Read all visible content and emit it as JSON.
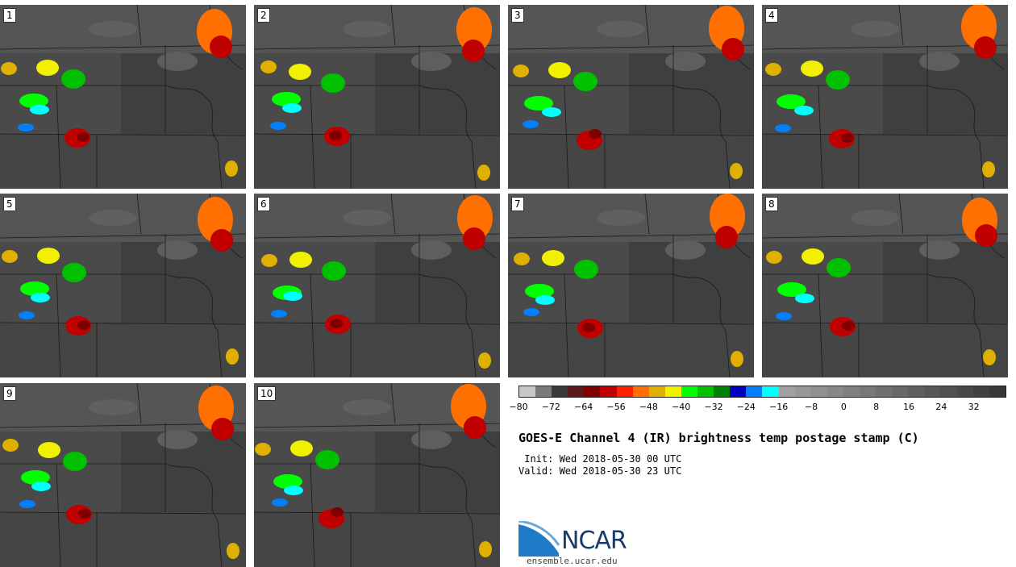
{
  "panels": [
    {
      "label": "1"
    },
    {
      "label": "2"
    },
    {
      "label": "3"
    },
    {
      "label": "4"
    },
    {
      "label": "5"
    },
    {
      "label": "6"
    },
    {
      "label": "7"
    },
    {
      "label": "8"
    },
    {
      "label": "9"
    },
    {
      "label": "10"
    }
  ],
  "colorbar": {
    "colors": [
      "#c8c8c8",
      "#7a7a7a",
      "#3a3a3a",
      "#5a1a1a",
      "#800000",
      "#c00000",
      "#ff2000",
      "#ff7000",
      "#e0b000",
      "#f0f000",
      "#00ff00",
      "#00c000",
      "#008000",
      "#0000c0",
      "#0080ff",
      "#00ffff",
      "#a0a0a0",
      "#989898",
      "#909090",
      "#888888",
      "#808080",
      "#787878",
      "#707070",
      "#686868",
      "#606060",
      "#585858",
      "#505050",
      "#484848",
      "#404040",
      "#383838"
    ],
    "tick_labels": [
      "−80",
      "−72",
      "−64",
      "−56",
      "−48",
      "−40",
      "−32",
      "−24",
      "−16",
      "−8",
      "0",
      "8",
      "16",
      "24",
      "32"
    ]
  },
  "title": "GOES-E Channel 4 (IR) brightness temp postage stamp (C)",
  "init": " Init: Wed 2018-05-30 00 UTC",
  "valid": "Valid: Wed 2018-05-30 23 UTC",
  "logo_text": "NCAR",
  "url": "ensemble.ucar.edu"
}
